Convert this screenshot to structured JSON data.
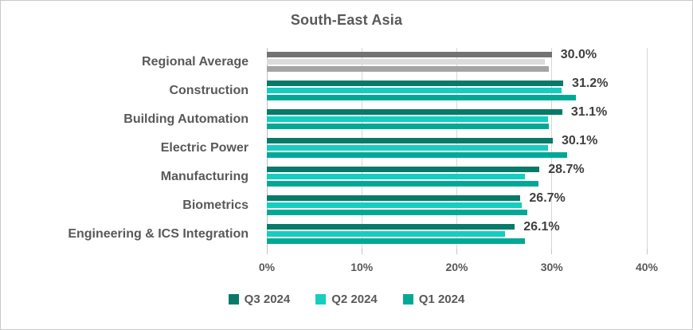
{
  "window": {
    "background": "#FFFFFF",
    "border_color": "#C9C9C9"
  },
  "chart_data": {
    "type": "bar",
    "orientation": "horizontal",
    "title": "South-East Asia",
    "categories": [
      "Regional Average",
      "Construction",
      "Building Automation",
      "Electric Power",
      "Manufacturing",
      "Biometrics",
      "Engineering & ICS Integration"
    ],
    "series": [
      {
        "name": "Q3 2024",
        "color": "#087A6A",
        "regional_color": "#737373",
        "values": [
          30.0,
          31.2,
          31.1,
          30.1,
          28.7,
          26.7,
          26.1
        ]
      },
      {
        "name": "Q2 2024",
        "color": "#15CEC0",
        "regional_color": "#DBDBDB",
        "values": [
          29.3,
          31.0,
          29.6,
          29.6,
          27.2,
          26.8,
          25.1
        ]
      },
      {
        "name": "Q1 2024",
        "color": "#00A995",
        "regional_color": "#A4A4A4",
        "values": [
          29.7,
          32.5,
          29.7,
          31.6,
          28.6,
          27.4,
          27.2
        ]
      }
    ],
    "data_labels": [
      "30.0%",
      "31.2%",
      "31.1%",
      "30.1%",
      "28.7%",
      "26.7%",
      "26.1%"
    ],
    "data_label_series": "Q3 2024",
    "xlim": [
      0,
      40
    ],
    "x_ticks": [
      {
        "label": "0%",
        "value": 0
      },
      {
        "label": "10%",
        "value": 10
      },
      {
        "label": "20%",
        "value": 20
      },
      {
        "label": "30%",
        "value": 30
      },
      {
        "label": "40%",
        "value": 40
      }
    ],
    "grid": true,
    "legend_position": "bottom",
    "styles": {
      "title_color": "#595959",
      "category_label_color": "#595959",
      "data_label_color": "#3F3F3F",
      "tick_label_color": "#595959",
      "grid_color": "#D6D6D6",
      "axis_color": "#BFBFBF"
    }
  }
}
